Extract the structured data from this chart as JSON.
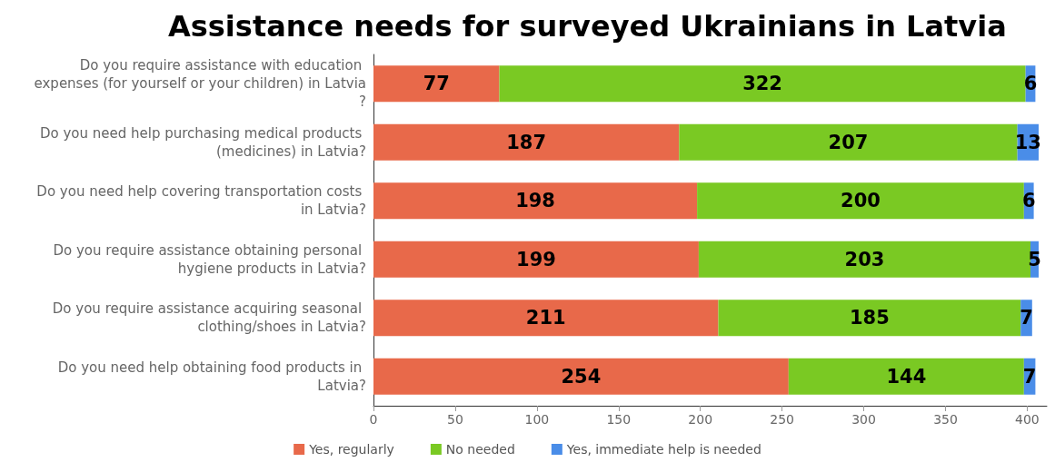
{
  "chart_data": {
    "type": "bar",
    "title": "Assistance needs for surveyed Ukrainians in Latvia",
    "orientation": "horizontal",
    "stacked": true,
    "data_labels": true,
    "legend": "bottom",
    "grid": false,
    "categories": [
      "Do you require assistance with education expenses (for yourself or your children) in Latvia?",
      "Do you need help purchasing medical products (medicines) in Latvia?",
      "Do you need help covering transportation costs in Latvia?",
      "Do you require assistance obtaining personal hygiene products in Latvia?",
      "Do you require assistance acquiring seasonal clothing/shoes in Latvia?",
      "Do you need help obtaining food products in Latvia?"
    ],
    "series": [
      {
        "name": "Yes, regularly",
        "color": "#e8694a",
        "values": [
          77,
          187,
          198,
          199,
          211,
          254
        ]
      },
      {
        "name": "No needed",
        "color": "#7ac923",
        "values": [
          322,
          207,
          200,
          203,
          185,
          144
        ]
      },
      {
        "name": "Yes, immediate help is needed",
        "color": "#4a8de8",
        "values": [
          6,
          13,
          6,
          5,
          7,
          7
        ]
      }
    ],
    "xlim": [
      0,
      412
    ],
    "xticks": [
      0,
      50,
      100,
      150,
      200,
      250,
      300,
      350,
      400
    ]
  }
}
